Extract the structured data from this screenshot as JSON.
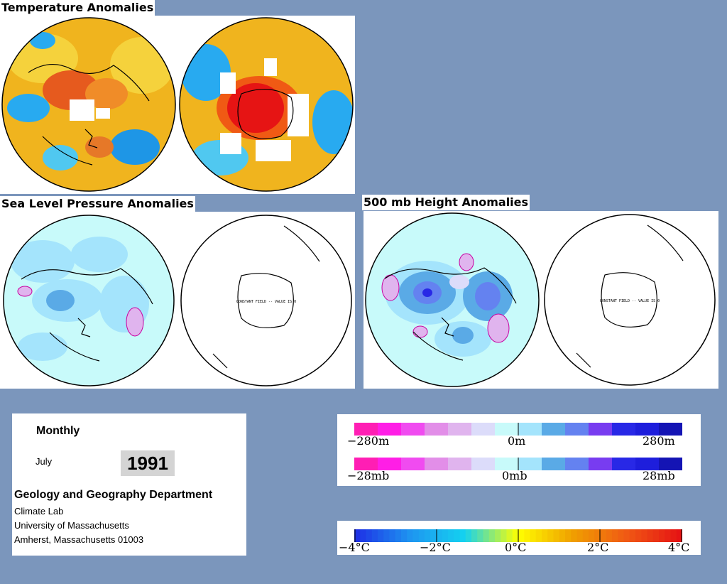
{
  "titles": {
    "temperature": "Temperature Anomalies",
    "slp": "Sea Level Pressure Anomalies",
    "height500": "500 mb Height Anomalies"
  },
  "maps": {
    "constant_field_label": "CONSTANT FIELD -- VALUE IS 0"
  },
  "info": {
    "period": "Monthly",
    "month": "July",
    "year": "1991",
    "department": "Geology and Geography Department",
    "lab": "Climate Lab",
    "university": "University of Massachusetts",
    "address": "Amherst, Massachusetts 01003"
  },
  "legends": {
    "height": {
      "min": "−280m",
      "mid": "0m",
      "max": "280m"
    },
    "pressure": {
      "min": "−28mb",
      "mid": "0mb",
      "max": "28mb"
    },
    "temperature": {
      "ticks": [
        "−4°C",
        "−2°C",
        "0°C",
        "2°C",
        "4°C"
      ]
    }
  },
  "colors": {
    "background": "#7b96bc",
    "anomaly_scale": [
      "#ff1eb4",
      "#ff1ee6",
      "#f04bf0",
      "#e28ee8",
      "#e0b4ee",
      "#dcdcfa",
      "#c8fafa",
      "#a4e4fc",
      "#5aaae6",
      "#6482f0",
      "#783cf0",
      "#2828e6",
      "#1e1edc",
      "#1414b4"
    ],
    "temperature_scale": [
      "#1e32e6",
      "#1e96f0",
      "#14d2f0",
      "#ffff00",
      "#f0a000",
      "#f05a14",
      "#e61414"
    ]
  }
}
